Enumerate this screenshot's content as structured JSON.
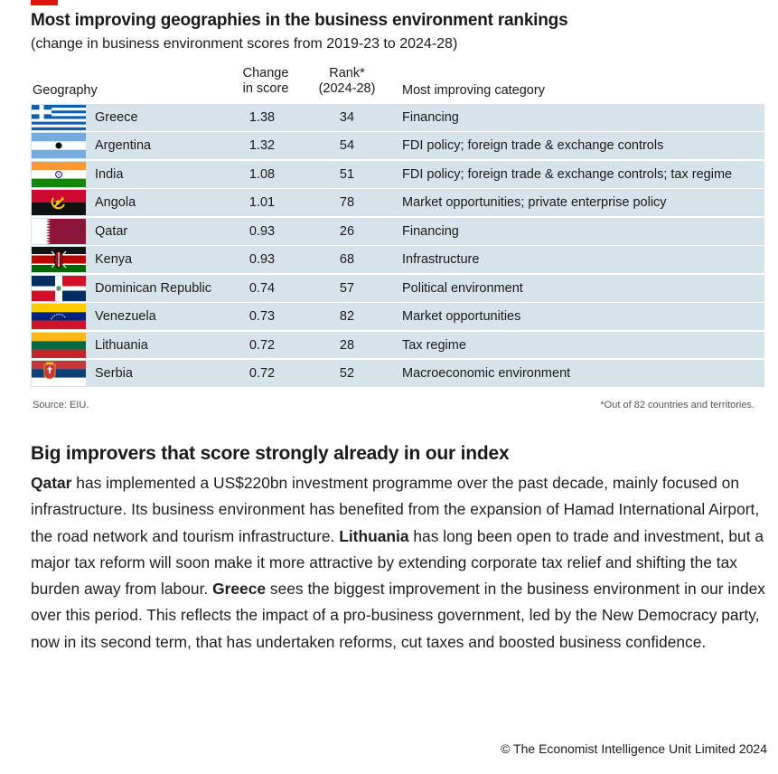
{
  "header": {
    "title": "Most improving geographies in the business environment rankings",
    "subtitle": "(change in business environment scores from 2019-23 to 2024-28)"
  },
  "table": {
    "columns": {
      "geography": "Geography",
      "change_line1": "Change",
      "change_line2": "in score",
      "rank_line1": "Rank*",
      "rank_line2": "(2024-28)",
      "category": "Most improving category"
    },
    "rows": [
      {
        "geography": "Greece",
        "change": "1.38",
        "rank": "34",
        "category": "Financing",
        "flag_icon": "greece-flag-icon"
      },
      {
        "geography": "Argentina",
        "change": "1.32",
        "rank": "54",
        "category": "FDI policy; foreign trade & exchange controls",
        "flag_icon": "argentina-flag-icon"
      },
      {
        "geography": "India",
        "change": "1.08",
        "rank": "51",
        "category": "FDI policy; foreign trade & exchange controls; tax regime",
        "flag_icon": "india-flag-icon"
      },
      {
        "geography": "Angola",
        "change": "1.01",
        "rank": "78",
        "category": "Market opportunities; private enterprise policy",
        "flag_icon": "angola-flag-icon"
      },
      {
        "geography": "Qatar",
        "change": "0.93",
        "rank": "26",
        "category": "Financing",
        "flag_icon": "qatar-flag-icon"
      },
      {
        "geography": "Kenya",
        "change": "0.93",
        "rank": "68",
        "category": "Infrastructure",
        "flag_icon": "kenya-flag-icon"
      },
      {
        "geography": "Dominican Republic",
        "change": "0.74",
        "rank": "57",
        "category": "Political environment",
        "flag_icon": "dominican-republic-flag-icon"
      },
      {
        "geography": "Venezuela",
        "change": "0.73",
        "rank": "82",
        "category": "Market opportunities",
        "flag_icon": "venezuela-flag-icon"
      },
      {
        "geography": "Lithuania",
        "change": "0.72",
        "rank": "28",
        "category": "Tax regime",
        "flag_icon": "lithuania-flag-icon"
      },
      {
        "geography": "Serbia",
        "change": "0.72",
        "rank": "52",
        "category": "Macroeconomic environment",
        "flag_icon": "serbia-flag-icon"
      }
    ],
    "source": "Source: EIU.",
    "footnote": "*Out of 82 countries and territories."
  },
  "article": {
    "heading": "Big improvers that score strongly already in our index",
    "p_qatar_bold": "Qatar",
    "p_qatar_text": " has implemented a US$220bn investment programme over the past decade, mainly focused on infrastructure. Its business environment has benefited from the expansion of Hamad International Airport, the road network and tourism infrastructure. ",
    "p_lithuania_bold": "Lithuania",
    "p_lithuania_text": " has long been open to trade and investment, but a major tax reform will soon make it more attractive by extending corporate tax relief and shifting the tax burden away from labour. ",
    "p_greece_bold": "Greece",
    "p_greece_text": " sees the biggest improvement in the business environment in our index over this period. This reflects the impact of a pro-business government, led by the New Democracy party, now in its second term, that has undertaken reforms, cut taxes and boosted business confidence."
  },
  "footer": {
    "copyright": "© The Economist Intelligence Unit Limited 2024"
  },
  "colors": {
    "row_background": "#d6e3ea",
    "economist_red": "#e3120b"
  }
}
